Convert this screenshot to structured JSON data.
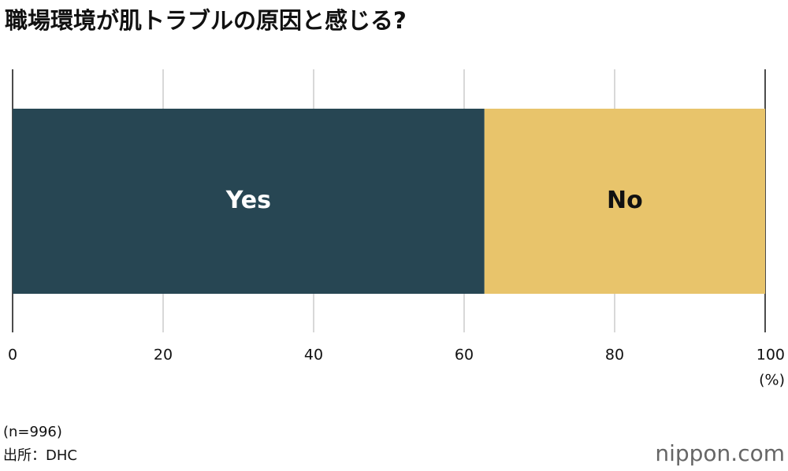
{
  "chart_data": {
    "type": "stacked_bar",
    "orientation": "horizontal",
    "title": "職場環境が肌トラブルの原因と感じる?",
    "series": [
      {
        "name": "Yes",
        "color": "#274653",
        "values": [
          62.7
        ]
      },
      {
        "name": "No",
        "color": "#e8c46b",
        "values": [
          37.3
        ]
      }
    ],
    "xlim": [
      0,
      100
    ],
    "xticks": [
      0,
      20,
      40,
      60,
      80,
      100
    ],
    "grid": true,
    "x_unit": "(%)",
    "notes": [
      "(n=996)",
      "出所：DHC"
    ],
    "logo": "nippon.com"
  }
}
